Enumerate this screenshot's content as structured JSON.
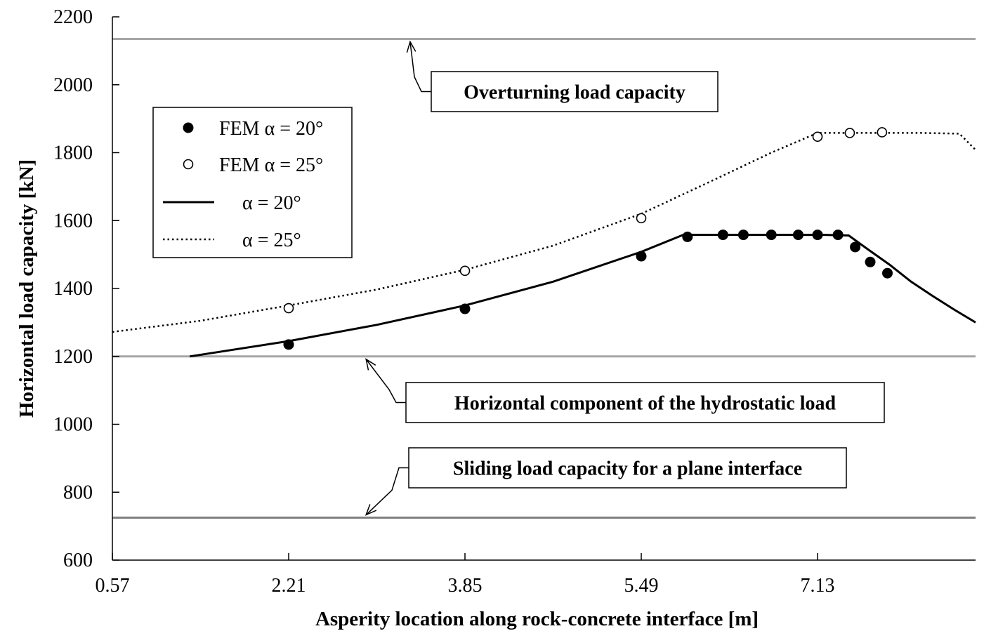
{
  "chart_data": {
    "type": "line",
    "xlabel": "Asperity location along rock-concrete interface [m]",
    "ylabel": "Horizontal load capacity [kN]",
    "xlim": [
      0.57,
      8.6
    ],
    "ylim": [
      600,
      2200
    ],
    "xticks": [
      "0.57",
      "2.21",
      "3.85",
      "5.49",
      "7.13"
    ],
    "yticks": [
      "600",
      "800",
      "1000",
      "1200",
      "1400",
      "1600",
      "1800",
      "2000",
      "2200"
    ],
    "grid": false,
    "legend_position": "upper-left",
    "reference_lines": [
      {
        "y": 2135,
        "color": "#a6a6a6"
      },
      {
        "y": 1200,
        "color": "#a6a6a6"
      },
      {
        "y": 725,
        "color": "#7f7f7f"
      }
    ],
    "series": [
      {
        "name": "FEM α = 20°",
        "style": "filled-marker",
        "x": [
          2.21,
          3.85,
          5.49,
          5.92,
          6.25,
          6.44,
          6.7,
          6.95,
          7.13,
          7.32,
          7.48,
          7.62,
          7.78
        ],
        "y": [
          1235,
          1340,
          1495,
          1552,
          1558,
          1558,
          1558,
          1558,
          1558,
          1558,
          1522,
          1478,
          1445
        ]
      },
      {
        "name": "FEM α = 25°",
        "style": "open-marker",
        "x": [
          2.21,
          3.85,
          5.49,
          7.13,
          7.43,
          7.73
        ],
        "y": [
          1342,
          1452,
          1607,
          1847,
          1858,
          1860
        ]
      },
      {
        "name": "α = 20°",
        "style": "solid-line",
        "x": [
          1.29,
          2.21,
          3.03,
          3.85,
          4.67,
          5.49,
          5.88,
          6.2,
          6.7,
          7.2,
          7.42,
          7.6,
          7.8,
          8.0,
          8.2,
          8.4,
          8.6
        ],
        "y": [
          1200,
          1245,
          1293,
          1350,
          1420,
          1508,
          1558,
          1558,
          1558,
          1558,
          1556,
          1515,
          1470,
          1420,
          1378,
          1338,
          1300
        ]
      },
      {
        "name": "α = 25°",
        "style": "dotted-line",
        "x": [
          0.57,
          1.39,
          2.21,
          3.03,
          3.85,
          4.67,
          5.49,
          6.1,
          6.7,
          7.13,
          7.6,
          8.1,
          8.45,
          8.6
        ],
        "y": [
          1272,
          1305,
          1350,
          1397,
          1455,
          1526,
          1620,
          1710,
          1800,
          1858,
          1858,
          1858,
          1856,
          1808
        ]
      }
    ],
    "annotations": [
      {
        "text": "Overturning load capacity",
        "target_x": 3.34,
        "target_y": 2135
      },
      {
        "text": "Horizontal component of the hydrostatic load",
        "target_x": 2.93,
        "target_y": 1200
      },
      {
        "text": "Sliding load capacity for a plane interface",
        "target_x": 2.93,
        "target_y": 725
      }
    ]
  }
}
